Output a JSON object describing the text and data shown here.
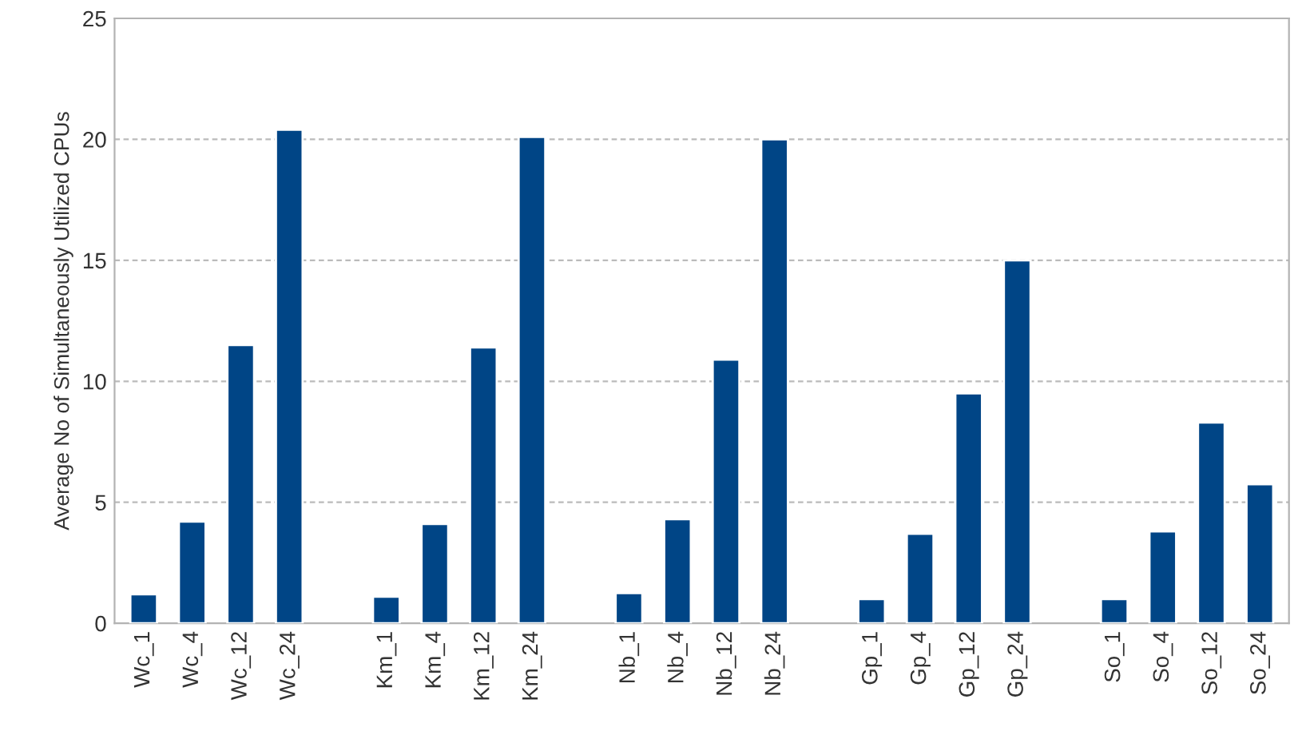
{
  "chart_data": {
    "type": "bar",
    "ylabel": "Average No of Simultaneously Utilized CPUs",
    "categories": [
      "Wc_1",
      "Wc_4",
      "Wc_12",
      "Wc_24",
      null,
      "Km_1",
      "Km_4",
      "Km_12",
      "Km_24",
      null,
      "Nb_1",
      "Nb_4",
      "Nb_12",
      "Nb_24",
      null,
      "Gp_1",
      "Gp_4",
      "Gp_12",
      "Gp_24",
      null,
      "So_1",
      "So_4",
      "So_12",
      "So_24"
    ],
    "values": [
      1.2,
      4.2,
      11.5,
      20.4,
      null,
      1.1,
      4.1,
      11.4,
      20.1,
      null,
      1.25,
      4.3,
      10.9,
      20.0,
      null,
      1.0,
      3.7,
      9.5,
      15.0,
      null,
      1.0,
      3.8,
      8.3,
      5.75
    ],
    "color": "#004586",
    "ylim": [
      0,
      25
    ],
    "yticks": [
      0,
      5,
      10,
      15,
      20,
      25
    ],
    "grid": "y",
    "legend": false
  }
}
